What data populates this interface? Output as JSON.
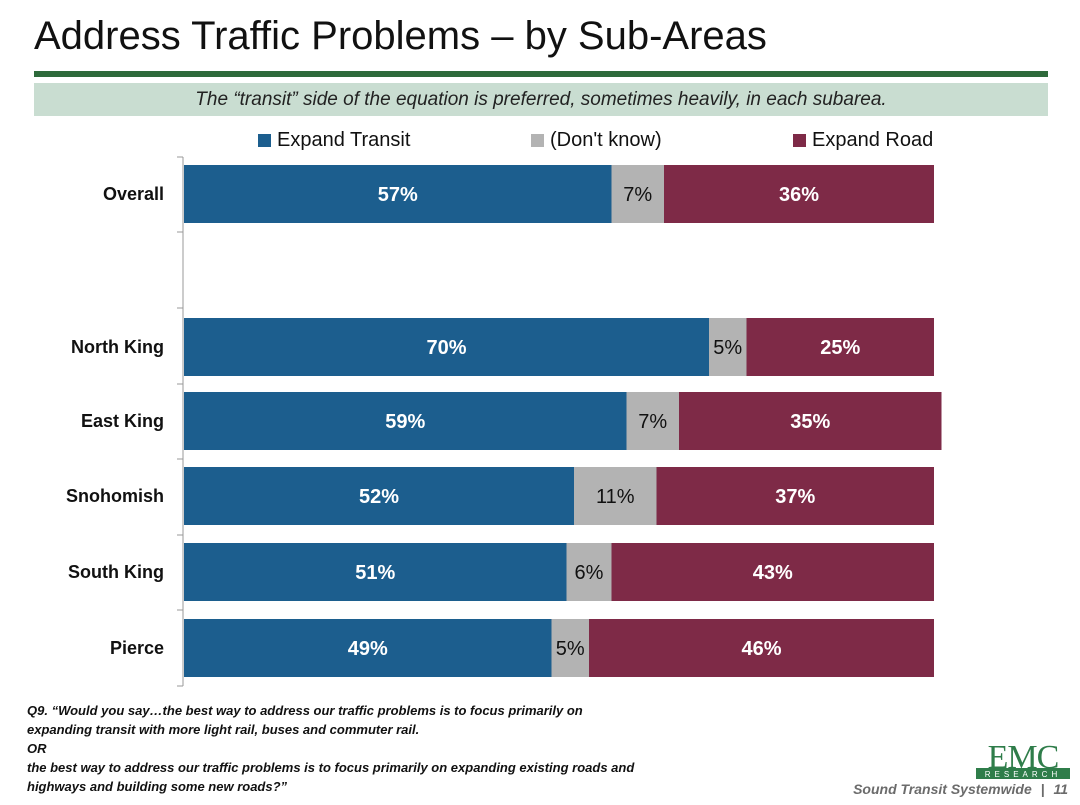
{
  "page": {
    "title": "Address Traffic Problems – by Sub-Areas",
    "subtitle": "The “transit” side of the equation is preferred, sometimes heavily, in each subarea.",
    "footnote_lines": [
      "Q9. “Would you say…the best way to address our traffic problems is to focus primarily on",
      "expanding transit with more light rail, buses and commuter rail.",
      "OR",
      "the best way to address our traffic problems is to focus primarily on expanding existing roads and",
      "highways and building some new roads?”"
    ],
    "logo": {
      "text": "EMC",
      "subtext": "RESEARCH"
    },
    "footer": {
      "label": "Sound Transit Systemwide",
      "separator": "|",
      "page_number": "11"
    }
  },
  "chart_data": {
    "type": "bar",
    "orientation": "horizontal",
    "stacked": "100%",
    "categories": [
      "Overall",
      "North King",
      "East King",
      "Snohomish",
      "South King",
      "Pierce"
    ],
    "series": [
      {
        "name": "Expand Transit",
        "color": "#1c5e8e",
        "values": [
          57,
          70,
          59,
          52,
          51,
          49
        ],
        "labels": [
          "57%",
          "70%",
          "59%",
          "52%",
          "51%",
          "49%"
        ],
        "label_color": "#ffffff"
      },
      {
        "name": "(Don't know)",
        "color": "#b3b3b3",
        "values": [
          7,
          5,
          7,
          11,
          6,
          5
        ],
        "labels": [
          "7%",
          "5%",
          "7%",
          "11%",
          "6%",
          "5%"
        ],
        "label_color": "#111111"
      },
      {
        "name": "Expand Road",
        "color": "#7e2a47",
        "values": [
          36,
          25,
          35,
          37,
          43,
          46
        ],
        "labels": [
          "36%",
          "25%",
          "35%",
          "37%",
          "43%",
          "46%"
        ],
        "label_color": "#ffffff"
      }
    ],
    "legend_position": "top",
    "grid": false
  }
}
